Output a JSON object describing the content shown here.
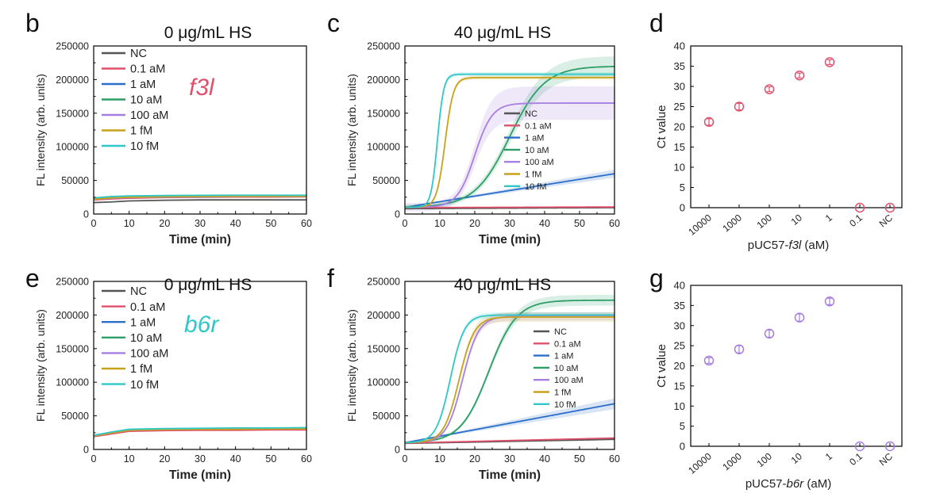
{
  "figure": {
    "colors": {
      "NC": "#555555",
      "0.1 aM": "#e0506a",
      "1 aM": "#2a6fc9",
      "10 aM": "#2e9e67",
      "100 aM": "#a77fe0",
      "1 fM": "#c9a21b",
      "10 fM": "#2fc7c7"
    }
  },
  "chart_data": [
    {
      "id": "b",
      "panel_label": "b",
      "type": "line",
      "title": "0 μg/mL HS",
      "xlabel": "Time (min)",
      "ylabel": "FL intensity (arb. units)",
      "xlim": [
        0,
        60
      ],
      "ylim": [
        0,
        250000
      ],
      "xticks": [
        "0",
        "10",
        "20",
        "30",
        "40",
        "50",
        "60"
      ],
      "yticks": [
        "0",
        "50000",
        "100000",
        "150000",
        "200000",
        "250000"
      ],
      "annotation": "f3l",
      "legend": [
        "NC",
        "0.1 aM",
        "1 aM",
        "10 aM",
        "100 aM",
        "1 fM",
        "10 fM"
      ],
      "legend_position": "top-left",
      "series": [
        {
          "name": "NC",
          "x": [
            0,
            5,
            10,
            20,
            30,
            40,
            50,
            60
          ],
          "y": [
            17000,
            18000,
            19500,
            20500,
            21000,
            21000,
            21000,
            21000
          ]
        },
        {
          "name": "0.1 aM",
          "x": [
            0,
            5,
            10,
            20,
            30,
            40,
            50,
            60
          ],
          "y": [
            21000,
            22500,
            23500,
            24500,
            25000,
            25200,
            25300,
            25500
          ]
        },
        {
          "name": "1 aM",
          "x": [
            0,
            5,
            10,
            20,
            30,
            40,
            50,
            60
          ],
          "y": [
            22000,
            23500,
            24500,
            25000,
            25500,
            25800,
            26000,
            26000
          ]
        },
        {
          "name": "10 aM",
          "x": [
            0,
            5,
            10,
            20,
            30,
            40,
            50,
            60
          ],
          "y": [
            23000,
            25500,
            26500,
            27000,
            27200,
            27400,
            27500,
            27500
          ]
        },
        {
          "name": "100 aM",
          "x": [
            0,
            5,
            10,
            20,
            30,
            40,
            50,
            60
          ],
          "y": [
            22000,
            23500,
            24500,
            25000,
            25500,
            25800,
            26000,
            26000
          ]
        },
        {
          "name": "1 fM",
          "x": [
            0,
            5,
            10,
            20,
            30,
            40,
            50,
            60
          ],
          "y": [
            22000,
            24000,
            25000,
            25500,
            26000,
            26200,
            26300,
            26500
          ]
        },
        {
          "name": "10 fM",
          "x": [
            0,
            5,
            10,
            20,
            30,
            40,
            50,
            60
          ],
          "y": [
            24000,
            26000,
            27000,
            27500,
            27800,
            28000,
            28000,
            28000
          ]
        }
      ]
    },
    {
      "id": "c",
      "panel_label": "c",
      "type": "line",
      "title": "40 μg/mL HS",
      "xlabel": "Time (min)",
      "ylabel": "FL intensity (arb. units)",
      "xlim": [
        0,
        60
      ],
      "ylim": [
        0,
        250000
      ],
      "xticks": [
        "0",
        "10",
        "20",
        "30",
        "40",
        "50",
        "60"
      ],
      "yticks": [
        "0",
        "50000",
        "100000",
        "150000",
        "200000",
        "250000"
      ],
      "legend": [
        "NC",
        "0.1 aM",
        "1 aM",
        "10 aM",
        "100 aM",
        "1 fM",
        "10 fM"
      ],
      "legend_position": "center-right",
      "series": [
        {
          "name": "NC",
          "model": "linear",
          "y0": 8000,
          "y1": 9500
        },
        {
          "name": "0.1 aM",
          "model": "linear",
          "y0": 9500,
          "y1": 10500
        },
        {
          "name": "1 aM",
          "model": "linear",
          "y0": 10000,
          "y1": 60000,
          "band": 6000
        },
        {
          "name": "10 aM",
          "model": "sigmoid",
          "base": 10000,
          "plateau": 220000,
          "t50": 30,
          "width": 5,
          "band": 15000
        },
        {
          "name": "100 aM",
          "model": "sigmoid",
          "base": 10000,
          "plateau": 165000,
          "t50": 20,
          "width": 2.5,
          "band": 25000
        },
        {
          "name": "1 fM",
          "model": "sigmoid",
          "base": 10000,
          "plateau": 203000,
          "t50": 11.5,
          "width": 1.2,
          "band": 3000
        },
        {
          "name": "10 fM",
          "model": "sigmoid",
          "base": 10000,
          "plateau": 208000,
          "t50": 9.3,
          "width": 0.9,
          "band": 3000
        }
      ]
    },
    {
      "id": "d",
      "panel_label": "d",
      "type": "scatter",
      "xlabel_prefix": "pUC57-",
      "xlabel_gene": "f3l",
      "xlabel_suffix": " (aM)",
      "ylabel": "Ct value",
      "ylim": [
        0,
        40
      ],
      "yticks": [
        "0",
        "5",
        "10",
        "15",
        "20",
        "25",
        "30",
        "35",
        "40"
      ],
      "categories": [
        "10000",
        "1000",
        "100",
        "10",
        "1",
        "0.1",
        "NC"
      ],
      "values": [
        21.2,
        25.0,
        29.3,
        32.7,
        36.0,
        0,
        0
      ],
      "errors": [
        0.8,
        0.8,
        0.6,
        0.6,
        0.6,
        0,
        0
      ],
      "marker_color": "#e0506a"
    },
    {
      "id": "e",
      "panel_label": "e",
      "type": "line",
      "title": "0 μg/mL HS",
      "xlabel": "Time (min)",
      "ylabel": "FL intensity (arb. units)",
      "xlim": [
        0,
        60
      ],
      "ylim": [
        0,
        250000
      ],
      "xticks": [
        "0",
        "10",
        "20",
        "30",
        "40",
        "50",
        "60"
      ],
      "yticks": [
        "0",
        "50000",
        "100000",
        "150000",
        "200000",
        "250000"
      ],
      "annotation": "b6r",
      "legend": [
        "NC",
        "0.1 aM",
        "1 aM",
        "10 aM",
        "100 aM",
        "1 fM",
        "10 fM"
      ],
      "legend_position": "top-left",
      "series": [
        {
          "name": "NC",
          "x": [
            0,
            5,
            10,
            20,
            30,
            40,
            50,
            60
          ],
          "y": [
            20000,
            24000,
            28000,
            29000,
            29500,
            30000,
            30000,
            30500
          ]
        },
        {
          "name": "0.1 aM",
          "x": [
            0,
            5,
            10,
            20,
            30,
            40,
            50,
            60
          ],
          "y": [
            19000,
            23000,
            27000,
            28000,
            28500,
            28500,
            29000,
            29000
          ]
        },
        {
          "name": "1 aM",
          "x": [
            0,
            5,
            10,
            20,
            30,
            40,
            50,
            60
          ],
          "y": [
            21000,
            25000,
            29000,
            30000,
            30500,
            31000,
            31000,
            31500
          ]
        },
        {
          "name": "10 aM",
          "x": [
            0,
            5,
            10,
            20,
            30,
            40,
            50,
            60
          ],
          "y": [
            20000,
            25000,
            29000,
            30000,
            30500,
            31000,
            31000,
            31000
          ]
        },
        {
          "name": "100 aM",
          "x": [
            0,
            5,
            10,
            20,
            30,
            40,
            50,
            60
          ],
          "y": [
            20000,
            24500,
            28500,
            29500,
            30000,
            30500,
            30500,
            30500
          ]
        },
        {
          "name": "1 fM",
          "x": [
            0,
            5,
            10,
            20,
            30,
            40,
            50,
            60
          ],
          "y": [
            20000,
            24500,
            28500,
            29500,
            30000,
            30000,
            30500,
            30500
          ]
        },
        {
          "name": "10 fM",
          "x": [
            0,
            5,
            10,
            20,
            30,
            40,
            50,
            60
          ],
          "y": [
            21000,
            26000,
            30000,
            31000,
            31500,
            32000,
            32000,
            32500
          ]
        }
      ]
    },
    {
      "id": "f",
      "panel_label": "f",
      "type": "line",
      "title": "40 μg/mL HS",
      "xlabel": "Time (min)",
      "ylabel": "FL intensity (arb. units)",
      "xlim": [
        0,
        60
      ],
      "ylim": [
        0,
        250000
      ],
      "xticks": [
        "0",
        "10",
        "20",
        "30",
        "40",
        "50",
        "60"
      ],
      "yticks": [
        "0",
        "50000",
        "100000",
        "150000",
        "200000",
        "250000"
      ],
      "legend": [
        "NC",
        "0.1 aM",
        "1 aM",
        "10 aM",
        "100 aM",
        "1 fM",
        "10 fM"
      ],
      "legend_position": "center-right",
      "series": [
        {
          "name": "NC",
          "model": "linear",
          "y0": 9000,
          "y1": 15000
        },
        {
          "name": "0.1 aM",
          "model": "linear",
          "y0": 9500,
          "y1": 17000
        },
        {
          "name": "1 aM",
          "model": "linear",
          "y0": 10000,
          "y1": 68000,
          "band": 8000
        },
        {
          "name": "10 aM",
          "model": "sigmoid",
          "base": 10000,
          "plateau": 222000,
          "t50": 24,
          "width": 4,
          "band": 8000
        },
        {
          "name": "100 aM",
          "model": "sigmoid",
          "base": 10000,
          "plateau": 198000,
          "t50": 16.5,
          "width": 2.3,
          "band": 6000
        },
        {
          "name": "1 fM",
          "model": "sigmoid",
          "base": 10000,
          "plateau": 197000,
          "t50": 15.5,
          "width": 2.2,
          "band": 7000
        },
        {
          "name": "10 fM",
          "model": "sigmoid",
          "base": 10000,
          "plateau": 200000,
          "t50": 13,
          "width": 2.0,
          "band": 4000
        }
      ]
    },
    {
      "id": "g",
      "panel_label": "g",
      "type": "scatter",
      "xlabel_prefix": "pUC57-",
      "xlabel_gene": "b6r",
      "xlabel_suffix": " (aM)",
      "ylabel": "Ct value",
      "ylim": [
        0,
        40
      ],
      "yticks": [
        "0",
        "5",
        "10",
        "15",
        "20",
        "25",
        "30",
        "35",
        "40"
      ],
      "categories": [
        "10000",
        "1000",
        "100",
        "10",
        "1",
        "0.1",
        "NC"
      ],
      "values": [
        21.3,
        24.1,
        28.0,
        32.0,
        36.0,
        0,
        0
      ],
      "errors": [
        0.7,
        0.9,
        0.9,
        0.9,
        0.8,
        0,
        0
      ],
      "marker_color": "#a77fe0"
    }
  ]
}
